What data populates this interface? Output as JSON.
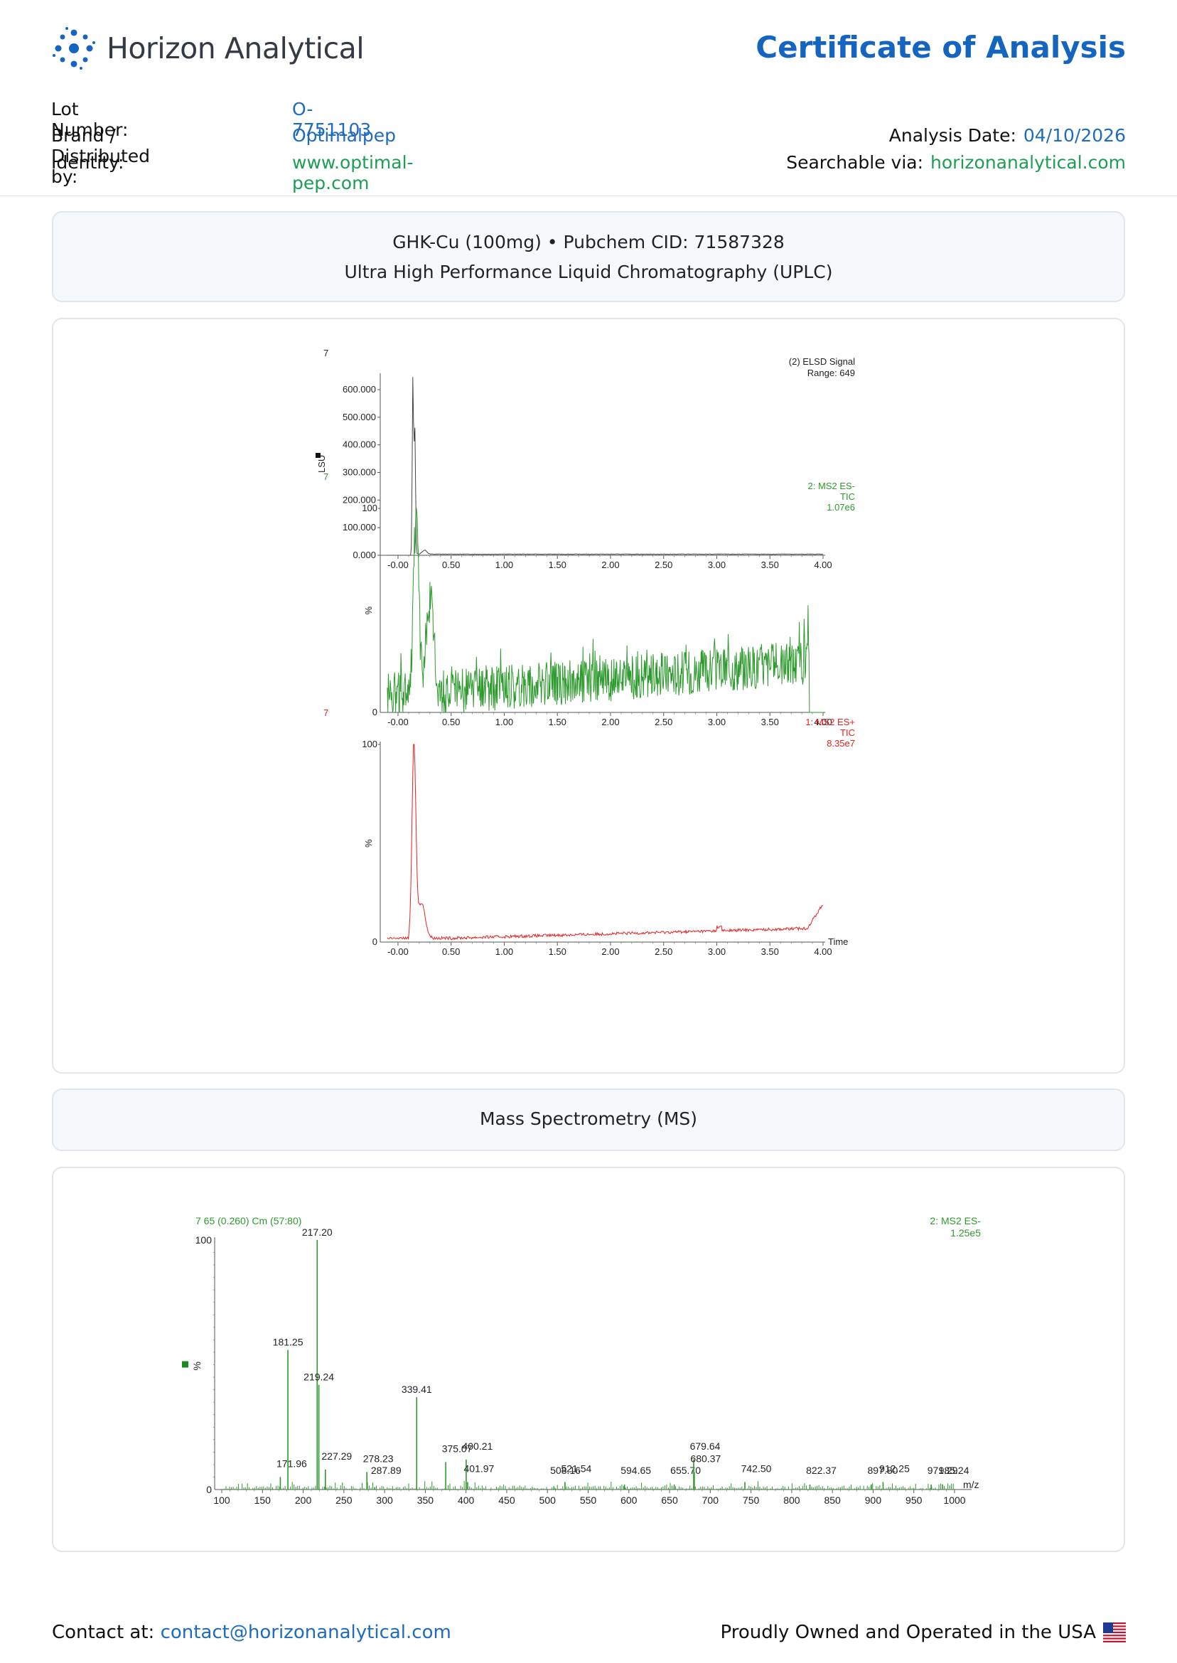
{
  "header": {
    "company": "Horizon Analytical",
    "doc_title": "Certificate of Analysis",
    "lot_label": "Lot Number:",
    "lot_value": "O-7751103",
    "brand_label": "Brand / Distributed by:",
    "brand_value": "Optimalpep",
    "identity_label": "Identity:",
    "identity_value": "www.optimal-pep.com",
    "date_label": "Analysis Date:",
    "date_value": "04/10/2026",
    "search_label": "Searchable via:",
    "search_value": "horizonanalytical.com",
    "colors": {
      "brand_blue": "#1565c0",
      "link_green": "#1e9e55",
      "logo_icon": "dot-network-logo-icon"
    }
  },
  "uplc_section": {
    "line1": "GHK-Cu (100mg) • Pubchem CID: 71587328",
    "line2": "Ultra High Performance Liquid Chromatography (UPLC)"
  },
  "ms_section": {
    "title": "Mass Spectrometry (MS)"
  },
  "footer": {
    "contact_label": "Contact at:",
    "contact_email": "contact@horizonanalytical.com",
    "tagline": "Proudly Owned and Operated in the USA",
    "flag_icon": "us-flag-icon"
  },
  "chart_data": [
    {
      "type": "line",
      "sample_label": "7",
      "trace_label": "(2) ELSD Signal",
      "range_label": "Range: 649",
      "ylabel": "LSU",
      "xlim": [
        -0.1,
        4.0
      ],
      "ylim": [
        0,
        649
      ],
      "xticks": [
        "-0.00",
        "0.50",
        "1.00",
        "1.50",
        "2.00",
        "2.50",
        "3.00",
        "3.50",
        "4.00"
      ],
      "yticks": [
        "0.000",
        "100.000",
        "200.000",
        "300.000",
        "400.000",
        "500.000",
        "600.000"
      ],
      "color": "#444444",
      "peaks": [
        {
          "x": 0.14,
          "y": 645
        },
        {
          "x": 0.15,
          "y": 470
        },
        {
          "x": 0.165,
          "y": 470
        }
      ],
      "baseline": 3
    },
    {
      "type": "line",
      "sample_label": "7",
      "trace_label": "2: MS2 ES-",
      "trace_sub": "TIC",
      "scale_label": "1.07e6",
      "ylabel": "%",
      "xlim": [
        -0.1,
        4.0
      ],
      "ylim": [
        0,
        100
      ],
      "xticks": [
        "-0.00",
        "0.50",
        "1.00",
        "1.50",
        "2.00",
        "2.50",
        "3.00",
        "3.50",
        "4.00"
      ],
      "ytick_min": "0",
      "ytick_max": "100",
      "color": "#2e9a2e",
      "peaks": [
        {
          "x": 0.16,
          "y": 100
        },
        {
          "x": 0.2,
          "y": 78
        }
      ],
      "baseline_start": 10,
      "baseline_end": 25
    },
    {
      "type": "line",
      "sample_label": "7",
      "trace_label": "1: MS2 ES+",
      "trace_sub": "TIC",
      "scale_label": "8.35e7",
      "ylabel": "%",
      "xlabel": "Time",
      "xlim": [
        -0.1,
        4.0
      ],
      "ylim": [
        0,
        100
      ],
      "xticks": [
        "-0.00",
        "0.50",
        "1.00",
        "1.50",
        "2.00",
        "2.50",
        "3.00",
        "3.50",
        "4.00"
      ],
      "ytick_min": "0",
      "ytick_max": "100",
      "color": "#e52222",
      "peaks": [
        {
          "x": 0.15,
          "y": 100
        }
      ],
      "baseline_start": 2,
      "baseline_end": 7
    },
    {
      "type": "bar",
      "scan_label": "7 65 (0.260) Cm (57:80)",
      "trace_label": "2: MS2 ES-",
      "scale_label": "1.25e5",
      "ylabel": "%",
      "xlabel": "m/z",
      "xlim": [
        100,
        1000
      ],
      "ylim": [
        0,
        100
      ],
      "xticks": [
        "100",
        "150",
        "200",
        "250",
        "300",
        "350",
        "400",
        "450",
        "500",
        "550",
        "600",
        "650",
        "700",
        "750",
        "800",
        "850",
        "900",
        "950",
        "1000"
      ],
      "ytick_min": "0",
      "ytick_max": "100",
      "color": "#2e9a2e",
      "peaks": [
        {
          "mz": 171.96,
          "label": "171.96",
          "y": 5
        },
        {
          "mz": 181.25,
          "label": "181.25",
          "y": 56
        },
        {
          "mz": 217.2,
          "label": "217.20",
          "y": 100
        },
        {
          "mz": 219.24,
          "label": "219.24",
          "y": 42
        },
        {
          "mz": 227.29,
          "label": "227.29",
          "y": 8
        },
        {
          "mz": 278.23,
          "label": "278.23",
          "y": 7
        },
        {
          "mz": 287.89,
          "label": "287.89",
          "y": 1
        },
        {
          "mz": 339.41,
          "label": "339.41",
          "y": 37
        },
        {
          "mz": 375.07,
          "label": "375.07",
          "y": 11
        },
        {
          "mz": 400.21,
          "label": "400.21",
          "y": 12
        },
        {
          "mz": 401.97,
          "label": "401.97",
          "y": 3
        },
        {
          "mz": 508.16,
          "label": "508.16",
          "y": 1
        },
        {
          "mz": 521.54,
          "label": "521.54",
          "y": 3
        },
        {
          "mz": 594.65,
          "label": "594.65",
          "y": 2
        },
        {
          "mz": 655.7,
          "label": "655.70",
          "y": 2
        },
        {
          "mz": 679.64,
          "label": "679.64",
          "y": 12
        },
        {
          "mz": 680.37,
          "label": "680.37",
          "y": 7
        },
        {
          "mz": 742.5,
          "label": "742.50",
          "y": 3
        },
        {
          "mz": 822.37,
          "label": "822.37",
          "y": 2
        },
        {
          "mz": 897.8,
          "label": "897.80",
          "y": 2
        },
        {
          "mz": 912.25,
          "label": "912.25",
          "y": 3
        },
        {
          "mz": 971.29,
          "label": "971.29",
          "y": 2
        },
        {
          "mz": 985.24,
          "label": "985.24",
          "y": 2
        }
      ]
    }
  ]
}
